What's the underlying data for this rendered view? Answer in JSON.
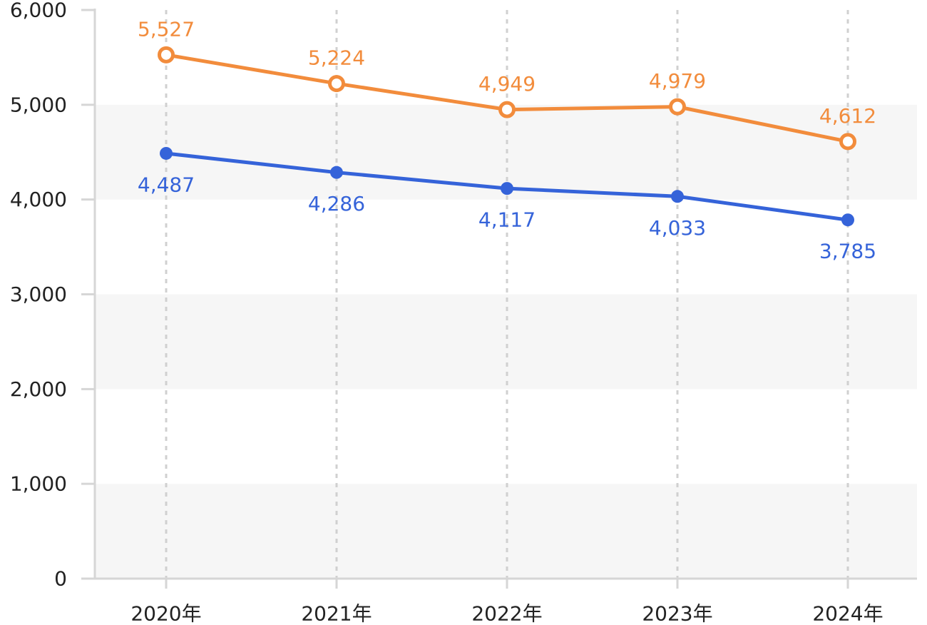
{
  "chart_data": {
    "type": "line",
    "categories": [
      "2020年",
      "2021年",
      "2022年",
      "2023年",
      "2024年"
    ],
    "series": [
      {
        "values": [
          5527,
          5224,
          4949,
          4979,
          4612
        ],
        "labels": [
          "5,527",
          "5,224",
          "4,949",
          "4,979",
          "4,612"
        ],
        "color": "#f28c3c",
        "marker": "hollow-circle",
        "label_position": "above"
      },
      {
        "values": [
          4487,
          4286,
          4117,
          4033,
          3785
        ],
        "labels": [
          "4,487",
          "4,286",
          "4,117",
          "4,033",
          "3,785"
        ],
        "color": "#3563d9",
        "marker": "filled-circle",
        "label_position": "below"
      }
    ],
    "yticks": [
      0,
      1000,
      2000,
      3000,
      4000,
      5000,
      6000
    ],
    "ytick_labels": [
      "0",
      "1,000",
      "2,000",
      "3,000",
      "4,000",
      "5,000",
      "6,000"
    ],
    "ylim": [
      0,
      6000
    ],
    "grid": "alternating horizontal bands, dashed vertical lines",
    "legend": "none"
  }
}
